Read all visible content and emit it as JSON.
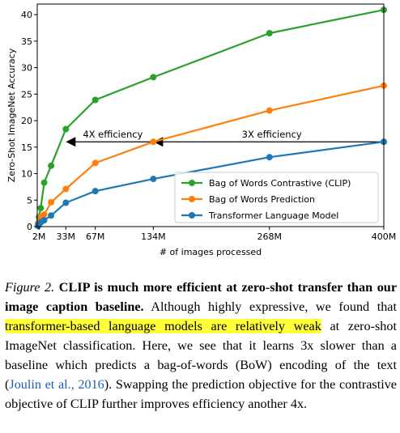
{
  "chart_data": {
    "type": "line",
    "xlabel": "# of images processed",
    "ylabel": "Zero-Shot ImageNet Accuracy",
    "x_ticks": [
      {
        "value": 2,
        "label": "2M"
      },
      {
        "value": 33,
        "label": "33M"
      },
      {
        "value": 67,
        "label": "67M"
      },
      {
        "value": 134,
        "label": "134M"
      },
      {
        "value": 268,
        "label": "268M"
      },
      {
        "value": 400,
        "label": "400M"
      }
    ],
    "y_ticks": [
      0,
      5,
      10,
      15,
      20,
      25,
      30,
      35,
      40
    ],
    "xlim": [
      0,
      400
    ],
    "ylim": [
      0,
      42
    ],
    "x_unit": "M images",
    "grid": false,
    "legend_position": "lower-right",
    "series": [
      {
        "name": "Bag of Words Contrastive (CLIP)",
        "color": "#2ca02c",
        "points": [
          [
            1,
            0.6
          ],
          [
            2,
            1.8
          ],
          [
            4,
            3.5
          ],
          [
            8,
            8.3
          ],
          [
            16,
            11.5
          ],
          [
            33,
            18.4
          ],
          [
            67,
            23.9
          ],
          [
            134,
            28.2
          ],
          [
            268,
            36.5
          ],
          [
            400,
            40.9
          ]
        ]
      },
      {
        "name": "Bag of Words Prediction",
        "color": "#ff7f0e",
        "points": [
          [
            1,
            0.3
          ],
          [
            2,
            0.9
          ],
          [
            4,
            1.8
          ],
          [
            8,
            2.3
          ],
          [
            16,
            4.6
          ],
          [
            33,
            7.1
          ],
          [
            67,
            12.0
          ],
          [
            134,
            16.0
          ],
          [
            268,
            21.9
          ],
          [
            400,
            26.6
          ]
        ]
      },
      {
        "name": "Transformer Language Model",
        "color": "#1f77b4",
        "points": [
          [
            1,
            0.1
          ],
          [
            2,
            0.4
          ],
          [
            4,
            0.8
          ],
          [
            8,
            1.2
          ],
          [
            16,
            2.1
          ],
          [
            33,
            4.5
          ],
          [
            67,
            6.7
          ],
          [
            134,
            9.0
          ],
          [
            268,
            13.1
          ],
          [
            400,
            16.0
          ]
        ]
      }
    ],
    "annotations": [
      {
        "text": "4X efficiency",
        "from_x": 134,
        "to_x": 33,
        "y": 16
      },
      {
        "text": "3X efficiency",
        "from_x": 400,
        "to_x": 134,
        "y": 16
      }
    ]
  },
  "caption": {
    "figure_label": "Figure 2.",
    "bold_text": "CLIP is much more efficient at zero-shot transfer than our image caption baseline.",
    "text_1": "Although highly expressive, we found that",
    "highlighted": "transformer-based language models are relatively weak",
    "text_2": "at zero-shot ImageNet classification. Here, we see that it learns 3x slower than a baseline which predicts a bag-of-words (BoW) encoding of the text (",
    "citation": "Joulin et al., 2016",
    "text_3": "). Swapping the prediction objective for the contrastive objective of CLIP further improves efficiency another 4x.",
    "highlight_color": "#ffff3a",
    "citation_color": "#1f5fb4"
  }
}
